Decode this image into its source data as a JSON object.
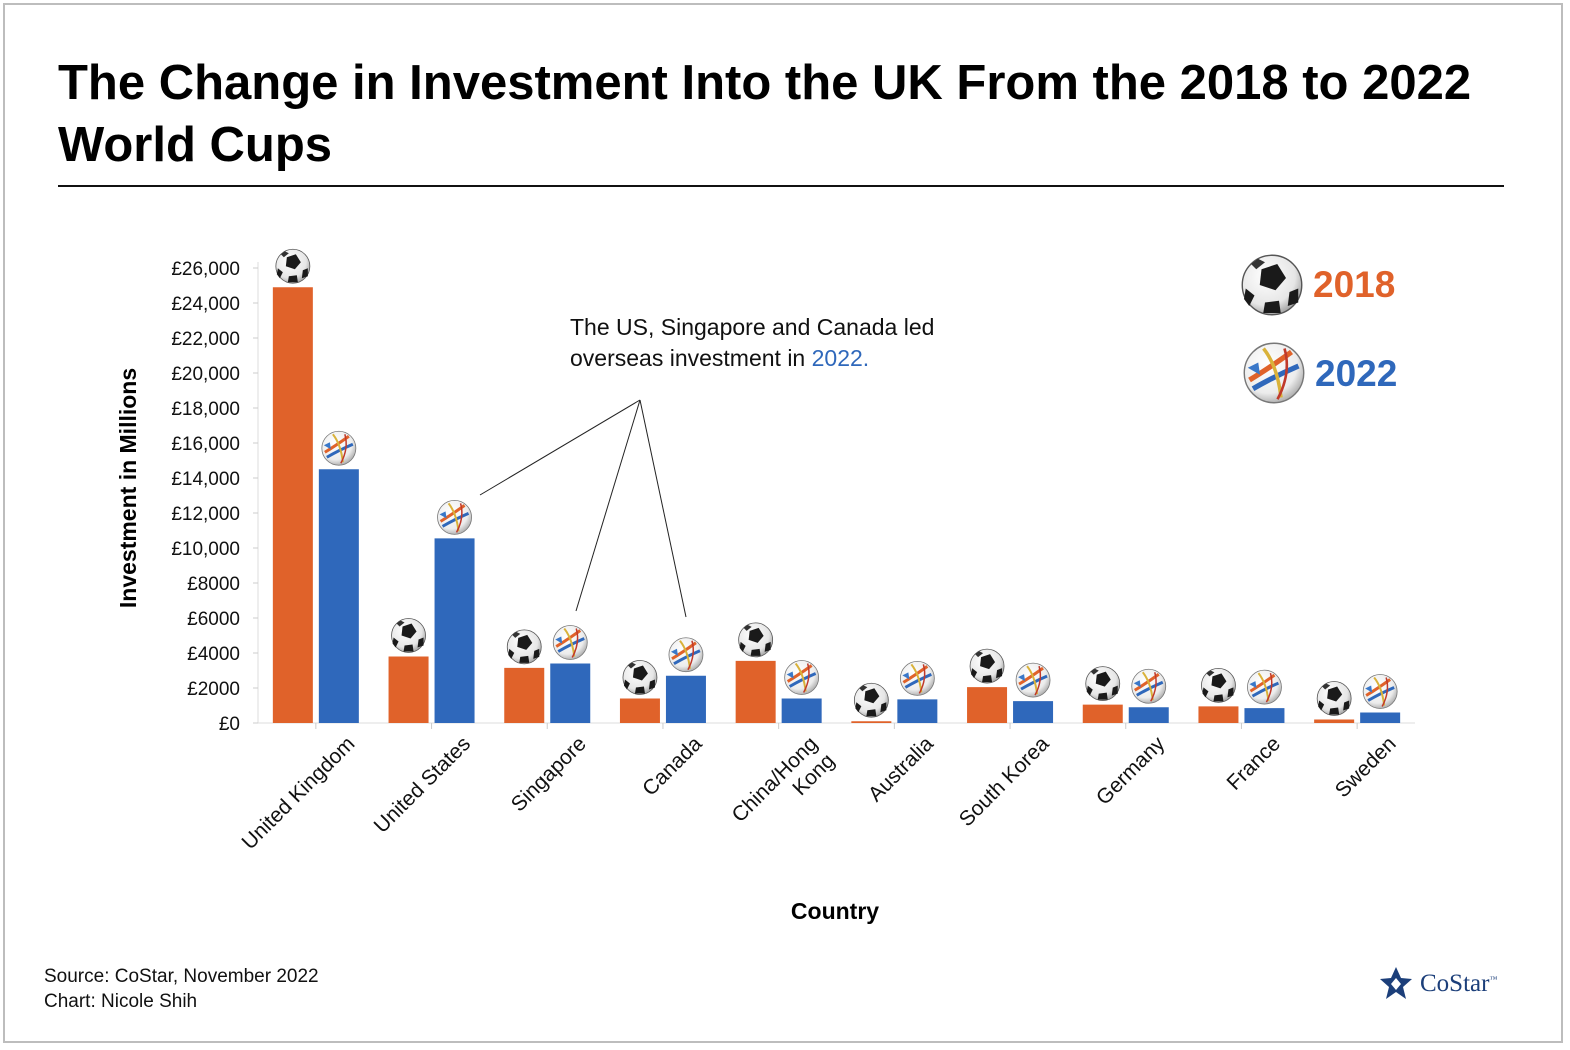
{
  "title": "The Change in Investment Into the UK From the 2018 to 2022 World Cups",
  "annotation": {
    "line1": "The US, Singapore and Canada led",
    "line2_prefix": "overseas investment in ",
    "line2_highlight": "2022",
    "line2_suffix": "."
  },
  "legend": [
    {
      "label": "2018",
      "color": "#e0622a",
      "icon": "soccer-ball-2018-icon"
    },
    {
      "label": "2022",
      "color": "#2f68bb",
      "icon": "soccer-ball-2022-icon"
    }
  ],
  "footer": {
    "source": "Source: CoStar, November 2022",
    "credit": "Chart: Nicole Shih"
  },
  "logo": {
    "text": "CoStar",
    "tm": "™"
  },
  "chart_data": {
    "type": "bar",
    "xlabel": "Country",
    "ylabel": "Investment in Millions",
    "ylim": [
      0,
      26000
    ],
    "yticks": [
      0,
      2000,
      4000,
      6000,
      8000,
      10000,
      12000,
      14000,
      16000,
      18000,
      20000,
      22000,
      24000,
      26000
    ],
    "ytick_labels": [
      "£0",
      "£2000",
      "£4000",
      "£6000",
      "£8000",
      "£10,000",
      "£12,000",
      "£14,000",
      "£16,000",
      "£18,000",
      "£20,000",
      "£22,000",
      "£24,000",
      "£26,000"
    ],
    "categories": [
      "United Kingdom",
      "United States",
      "Singapore",
      "Canada",
      "China/Hong Kong",
      "Australia",
      "South Korea",
      "Germany",
      "France",
      "Sweden"
    ],
    "category_label_lines": [
      [
        "United Kingdom"
      ],
      [
        "United States"
      ],
      [
        "Singapore"
      ],
      [
        "Canada"
      ],
      [
        "China/Hong",
        "Kong"
      ],
      [
        "Australia"
      ],
      [
        "South Korea"
      ],
      [
        "Germany"
      ],
      [
        "France"
      ],
      [
        "Sweden"
      ]
    ],
    "series": [
      {
        "name": "2018",
        "color": "#e0622a",
        "values": [
          24900,
          3800,
          3150,
          1400,
          3550,
          100,
          2050,
          1050,
          950,
          200
        ]
      },
      {
        "name": "2022",
        "color": "#2f68bb",
        "values": [
          14500,
          10550,
          3400,
          2700,
          1400,
          1350,
          1250,
          900,
          850,
          600
        ]
      }
    ],
    "grid": false,
    "legend_position": "top-right"
  }
}
